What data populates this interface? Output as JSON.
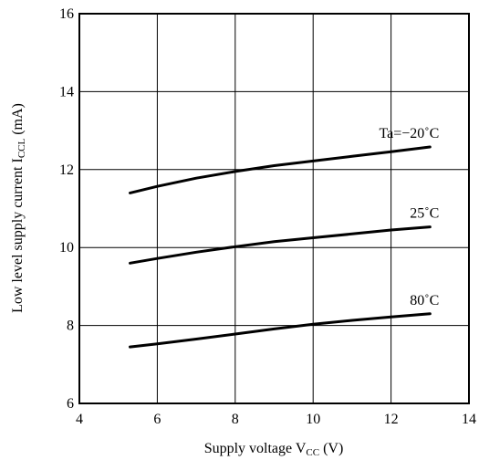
{
  "chart_data": {
    "type": "line",
    "title": "",
    "xlabel": {
      "main": "Supply voltage V",
      "sub": "CC",
      "unit": " (V)"
    },
    "ylabel": {
      "main": "Low level supply current I",
      "sub": "CCL",
      "unit": " (mA)"
    },
    "xlim": [
      4,
      14
    ],
    "ylim": [
      6,
      16
    ],
    "xticks": [
      4,
      6,
      8,
      10,
      12,
      14
    ],
    "yticks": [
      6,
      8,
      10,
      12,
      14,
      16
    ],
    "grid": true,
    "series": [
      {
        "name": "Ta=−20˚C",
        "x": [
          5.3,
          6,
          7,
          8,
          9,
          10,
          11,
          12,
          13
        ],
        "y": [
          11.4,
          11.57,
          11.78,
          11.95,
          12.1,
          12.22,
          12.34,
          12.46,
          12.58
        ]
      },
      {
        "name": "25˚C",
        "x": [
          5.3,
          6,
          7,
          8,
          9,
          10,
          11,
          12,
          13
        ],
        "y": [
          9.6,
          9.72,
          9.88,
          10.02,
          10.15,
          10.25,
          10.35,
          10.45,
          10.53
        ]
      },
      {
        "name": "80˚C",
        "x": [
          5.3,
          6,
          7,
          8,
          9,
          10,
          11,
          12,
          13
        ],
        "y": [
          7.45,
          7.53,
          7.65,
          7.78,
          7.91,
          8.03,
          8.13,
          8.22,
          8.3
        ]
      }
    ]
  }
}
